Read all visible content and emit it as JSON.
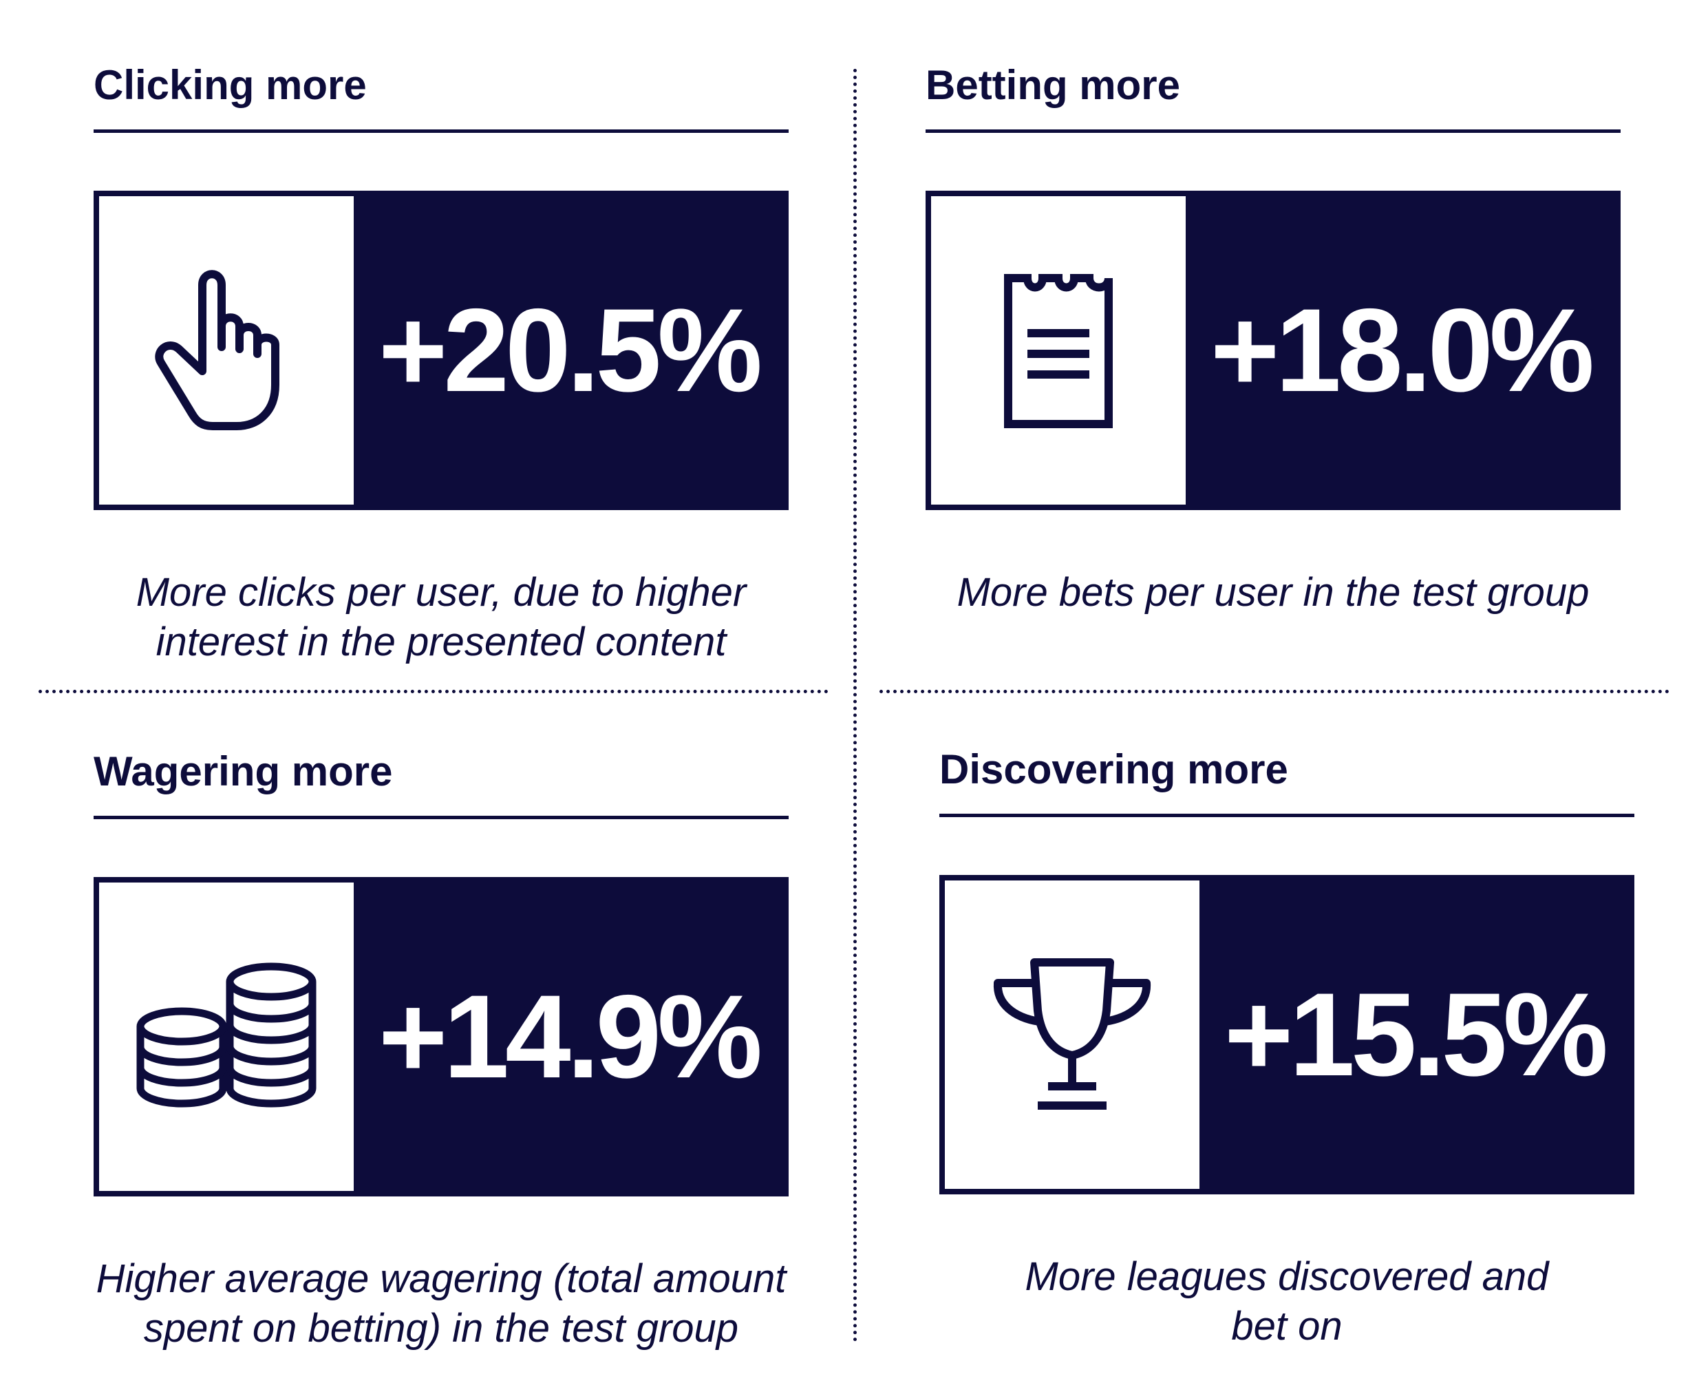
{
  "colors": {
    "navy": "#0d0c3b",
    "white": "#ffffff"
  },
  "quadrants": [
    {
      "heading": "Clicking more",
      "value": "+20.5%",
      "icon": "pointing-hand-icon",
      "description_lines": [
        "More clicks per user, due to higher",
        "interest in the presented content"
      ]
    },
    {
      "heading": "Betting more",
      "value": "+18.0%",
      "icon": "receipt-icon",
      "description_lines": [
        "More bets per user in the test group"
      ]
    },
    {
      "heading": "Wagering more",
      "value": "+14.9%",
      "icon": "coins-icon",
      "description_lines": [
        "Higher average wagering (total amount",
        "spent on betting) in the test group"
      ]
    },
    {
      "heading": "Discovering more",
      "value": "+15.5%",
      "icon": "trophy-icon",
      "description_lines": [
        "More leagues discovered and",
        "bet on"
      ]
    }
  ]
}
